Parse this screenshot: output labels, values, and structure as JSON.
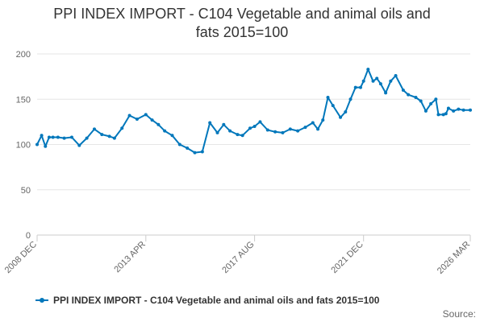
{
  "chart_data": {
    "type": "line",
    "title_lines": [
      "PPI INDEX IMPORT - C104 Vegetable and animal oils and",
      "fats 2015=100"
    ],
    "xlabel": "",
    "ylabel": "",
    "ylim": [
      0,
      200
    ],
    "y_ticks": [
      0,
      50,
      100,
      150,
      200
    ],
    "x_range": [
      2008.92,
      2026.17
    ],
    "x_ticks": [
      {
        "label": "2008 DEC",
        "x": 2008.92
      },
      {
        "label": "2013 APR",
        "x": 2013.25
      },
      {
        "label": "2017 AUG",
        "x": 2017.58
      },
      {
        "label": "2021 DEC",
        "x": 2021.92
      },
      {
        "label": "2026 MAR",
        "x": 2026.17
      }
    ],
    "grid": true,
    "series": [
      {
        "name": "PPI INDEX IMPORT - C104 Vegetable and animal oils and fats 2015=100",
        "color": "#0077bb",
        "x": [
          2008.92,
          2009.1,
          2009.25,
          2009.4,
          2009.55,
          2009.75,
          2010.0,
          2010.3,
          2010.6,
          2010.9,
          2011.2,
          2011.5,
          2011.8,
          2012.0,
          2012.3,
          2012.6,
          2012.9,
          2013.25,
          2013.5,
          2013.75,
          2014.0,
          2014.3,
          2014.6,
          2014.9,
          2015.2,
          2015.5,
          2015.8,
          2016.1,
          2016.35,
          2016.6,
          2016.9,
          2017.1,
          2017.4,
          2017.58,
          2017.8,
          2018.1,
          2018.4,
          2018.7,
          2019.0,
          2019.3,
          2019.6,
          2019.9,
          2020.1,
          2020.3,
          2020.5,
          2020.7,
          2021.0,
          2021.2,
          2021.4,
          2021.6,
          2021.8,
          2021.92,
          2022.1,
          2022.3,
          2022.45,
          2022.6,
          2022.8,
          2023.0,
          2023.2,
          2023.5,
          2023.7,
          2024.0,
          2024.2,
          2024.4,
          2024.6,
          2024.8,
          2024.9,
          2025.1,
          2025.2,
          2025.3,
          2025.5,
          2025.7,
          2025.9,
          2026.17
        ],
        "values": [
          100,
          110,
          98,
          108,
          108,
          108,
          107,
          108,
          99,
          107,
          117,
          111,
          109,
          107,
          118,
          132,
          128,
          133,
          127,
          122,
          115,
          110,
          100,
          96,
          91,
          92,
          124,
          113,
          122,
          115,
          111,
          110,
          118,
          120,
          125,
          116,
          114,
          113,
          117,
          115,
          119,
          124,
          117,
          127,
          152,
          143,
          130,
          136,
          150,
          163,
          163,
          170,
          183,
          170,
          173,
          167,
          157,
          170,
          176,
          160,
          155,
          152,
          148,
          137,
          145,
          150,
          133,
          133,
          134,
          140,
          137,
          139,
          138,
          138
        ]
      }
    ]
  },
  "legend": {
    "label": "PPI INDEX IMPORT - C104 Vegetable and animal oils and fats 2015=100"
  },
  "source": {
    "label": "Source:"
  }
}
